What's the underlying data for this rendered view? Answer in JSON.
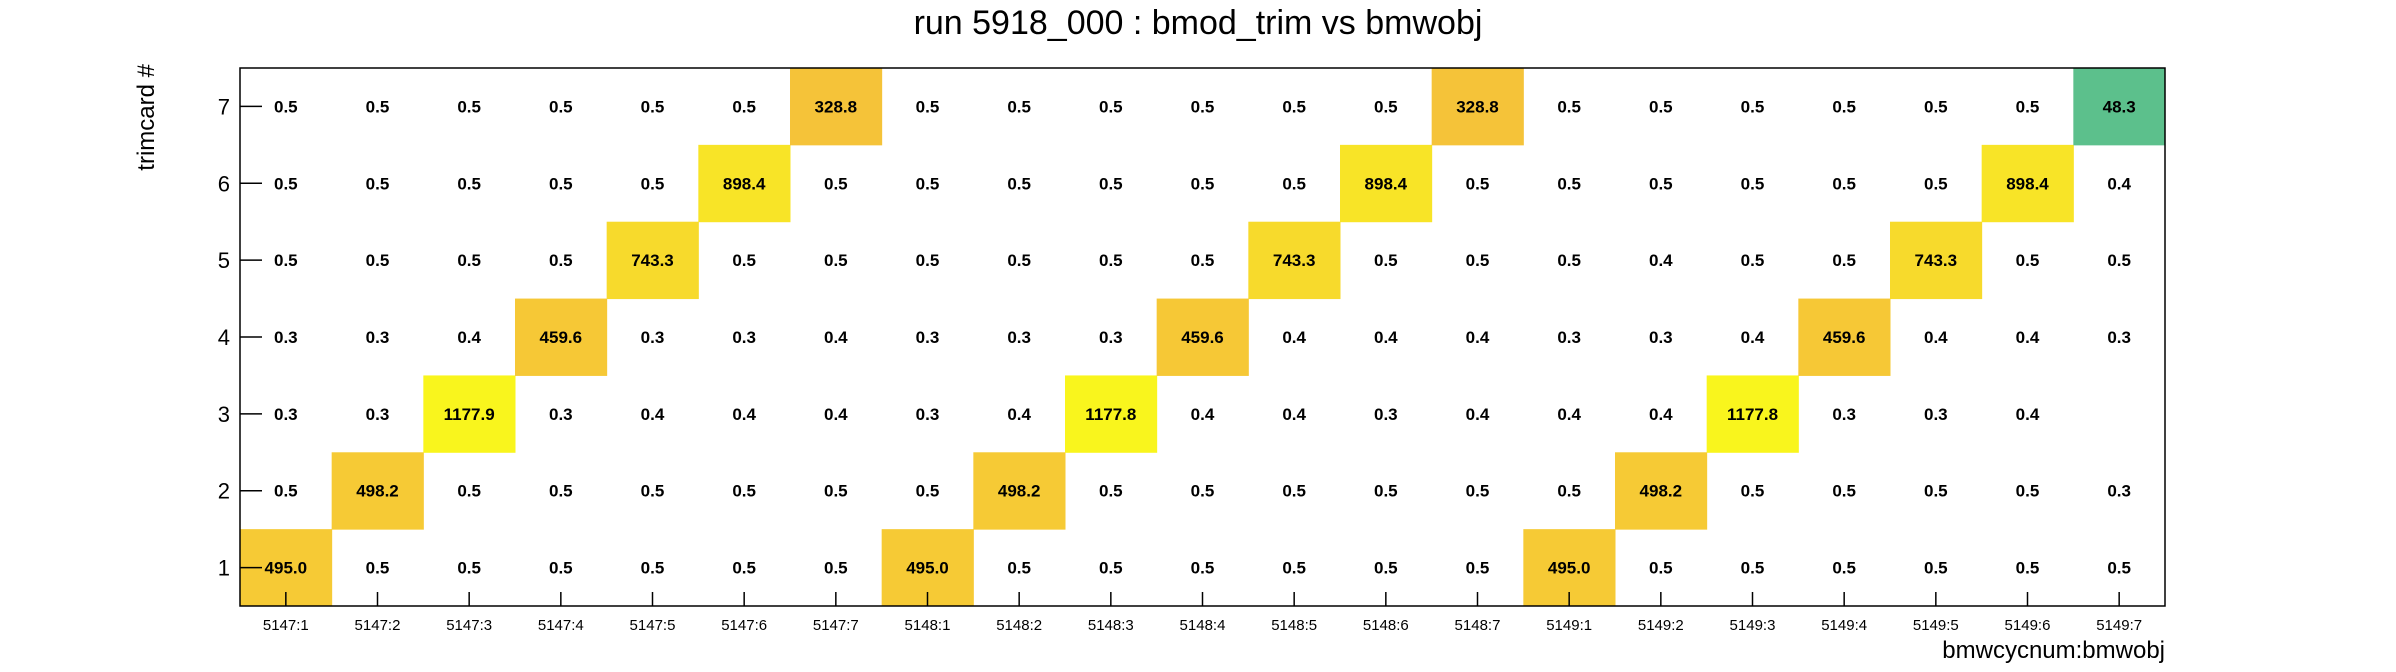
{
  "colors": {
    "frame": "#000000",
    "palette_low": "#5cc08c",
    "palette_mid": "#f5c13a",
    "palette_high": "#f9f51d"
  },
  "chart_data": {
    "type": "heatmap",
    "title": "run 5918_000 : bmod_trim vs bmwobj",
    "xlabel": "bmwcycnum:bmwobj",
    "ylabel": "trimcard #",
    "grid": false,
    "legend": "none",
    "x_categories": [
      "5147:1",
      "5147:2",
      "5147:3",
      "5147:4",
      "5147:5",
      "5147:6",
      "5147:7",
      "5148:1",
      "5148:2",
      "5148:3",
      "5148:4",
      "5148:5",
      "5148:6",
      "5148:7",
      "5149:1",
      "5149:2",
      "5149:3",
      "5149:4",
      "5149:5",
      "5149:6",
      "5149:7"
    ],
    "y_categories": [
      "1",
      "2",
      "3",
      "4",
      "5",
      "6",
      "7"
    ],
    "values": [
      [
        "495.0",
        "0.5",
        "0.5",
        "0.5",
        "0.5",
        "0.5",
        "0.5",
        "495.0",
        "0.5",
        "0.5",
        "0.5",
        "0.5",
        "0.5",
        "0.5",
        "495.0",
        "0.5",
        "0.5",
        "0.5",
        "0.5",
        "0.5",
        "0.5"
      ],
      [
        "0.5",
        "498.2",
        "0.5",
        "0.5",
        "0.5",
        "0.5",
        "0.5",
        "0.5",
        "498.2",
        "0.5",
        "0.5",
        "0.5",
        "0.5",
        "0.5",
        "0.5",
        "498.2",
        "0.5",
        "0.5",
        "0.5",
        "0.5",
        "0.3"
      ],
      [
        "0.3",
        "0.3",
        "1177.9",
        "0.3",
        "0.4",
        "0.4",
        "0.4",
        "0.3",
        "0.4",
        "1177.8",
        "0.4",
        "0.4",
        "0.3",
        "0.4",
        "0.4",
        "0.4",
        "1177.8",
        "0.3",
        "0.3",
        "0.4",
        null
      ],
      [
        "0.3",
        "0.3",
        "0.4",
        "459.6",
        "0.3",
        "0.3",
        "0.4",
        "0.3",
        "0.3",
        "0.3",
        "459.6",
        "0.4",
        "0.4",
        "0.4",
        "0.3",
        "0.3",
        "0.4",
        "459.6",
        "0.4",
        "0.4",
        "0.3"
      ],
      [
        "0.5",
        "0.5",
        "0.5",
        "0.5",
        "743.3",
        "0.5",
        "0.5",
        "0.5",
        "0.5",
        "0.5",
        "0.5",
        "743.3",
        "0.5",
        "0.5",
        "0.5",
        "0.4",
        "0.5",
        "0.5",
        "743.3",
        "0.5",
        "0.5"
      ],
      [
        "0.5",
        "0.5",
        "0.5",
        "0.5",
        "0.5",
        "898.4",
        "0.5",
        "0.5",
        "0.5",
        "0.5",
        "0.5",
        "0.5",
        "898.4",
        "0.5",
        "0.5",
        "0.5",
        "0.5",
        "0.5",
        "0.5",
        "898.4",
        "0.4"
      ],
      [
        "0.5",
        "0.5",
        "0.5",
        "0.5",
        "0.5",
        "0.5",
        "328.8",
        "0.5",
        "0.5",
        "0.5",
        "0.5",
        "0.5",
        "0.5",
        "328.8",
        "0.5",
        "0.5",
        "0.5",
        "0.5",
        "0.5",
        "0.5",
        "48.3"
      ]
    ]
  }
}
